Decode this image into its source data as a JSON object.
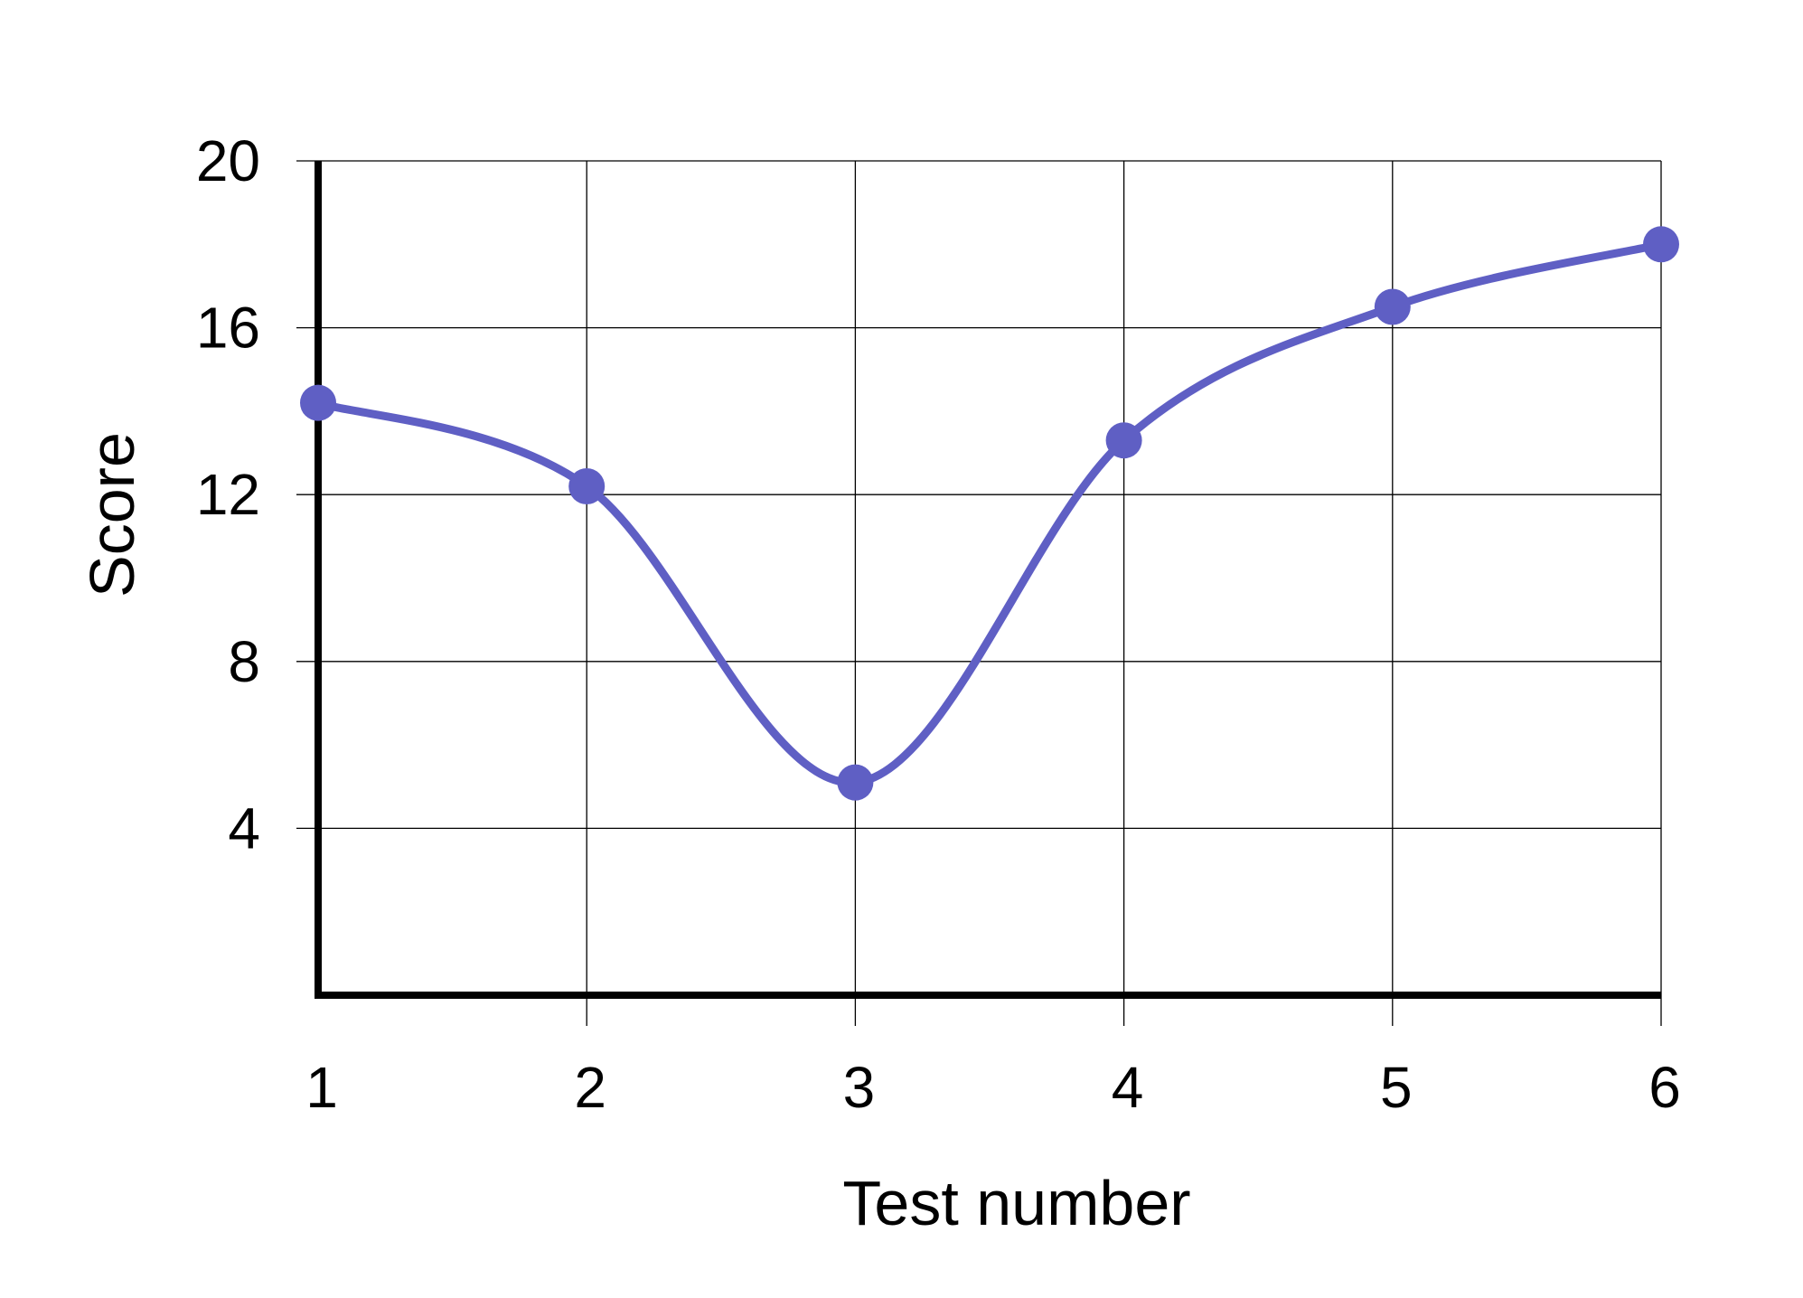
{
  "chart_data": {
    "type": "line",
    "title": "",
    "xlabel": "Test number",
    "ylabel": "Score",
    "x": [
      1,
      2,
      3,
      4,
      5,
      6
    ],
    "series": [
      {
        "values": [
          14.2,
          12.2,
          5.1,
          13.3,
          16.5,
          18.0
        ],
        "color": "#5f5fc4"
      }
    ],
    "xlim": [
      1,
      6
    ],
    "ylim": [
      0,
      20
    ],
    "x_ticks": [
      1,
      2,
      3,
      4,
      5,
      6
    ],
    "y_ticks": [
      4,
      8,
      12,
      16,
      20
    ],
    "grid": true,
    "smooth": true,
    "legend": "none"
  }
}
